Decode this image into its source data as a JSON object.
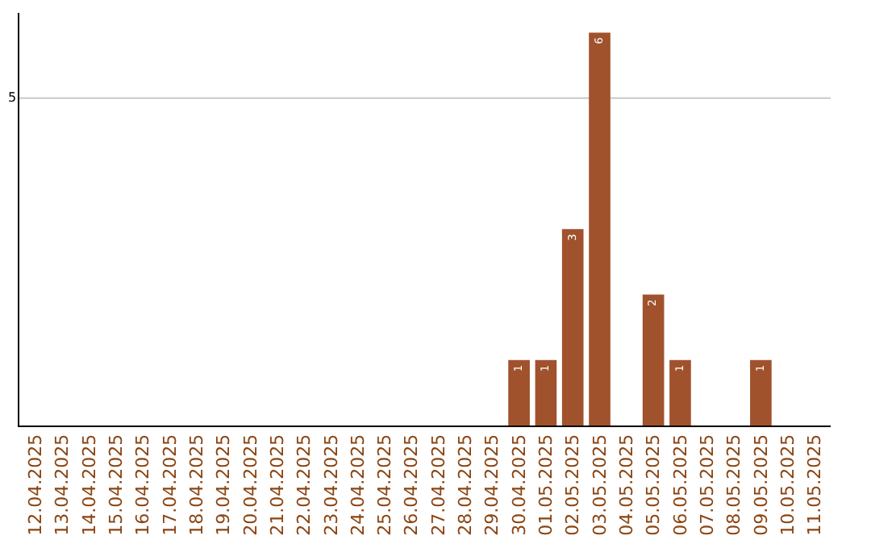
{
  "chart_data": {
    "type": "bar",
    "categories": [
      "12.04.2025",
      "13.04.2025",
      "14.04.2025",
      "15.04.2025",
      "16.04.2025",
      "17.04.2025",
      "18.04.2025",
      "19.04.2025",
      "20.04.2025",
      "21.04.2025",
      "22.04.2025",
      "23.04.2025",
      "24.04.2025",
      "25.04.2025",
      "26.04.2025",
      "27.04.2025",
      "28.04.2025",
      "29.04.2025",
      "30.04.2025",
      "01.05.2025",
      "02.05.2025",
      "03.05.2025",
      "04.05.2025",
      "05.05.2025",
      "06.05.2025",
      "07.05.2025",
      "08.05.2025",
      "09.05.2025",
      "10.05.2025",
      "11.05.2025"
    ],
    "values": [
      null,
      null,
      null,
      null,
      null,
      null,
      null,
      null,
      null,
      null,
      null,
      null,
      null,
      null,
      null,
      null,
      null,
      null,
      1,
      1,
      3,
      6,
      null,
      2,
      1,
      null,
      null,
      1,
      null,
      null
    ],
    "data_labels": true,
    "color": "#a0522d",
    "ylim": [
      0,
      6.3
    ],
    "ref_lines": [
      {
        "axis": "y",
        "value": 5,
        "label": "5",
        "color": "#c8c8c8"
      }
    ],
    "legend": false
  }
}
